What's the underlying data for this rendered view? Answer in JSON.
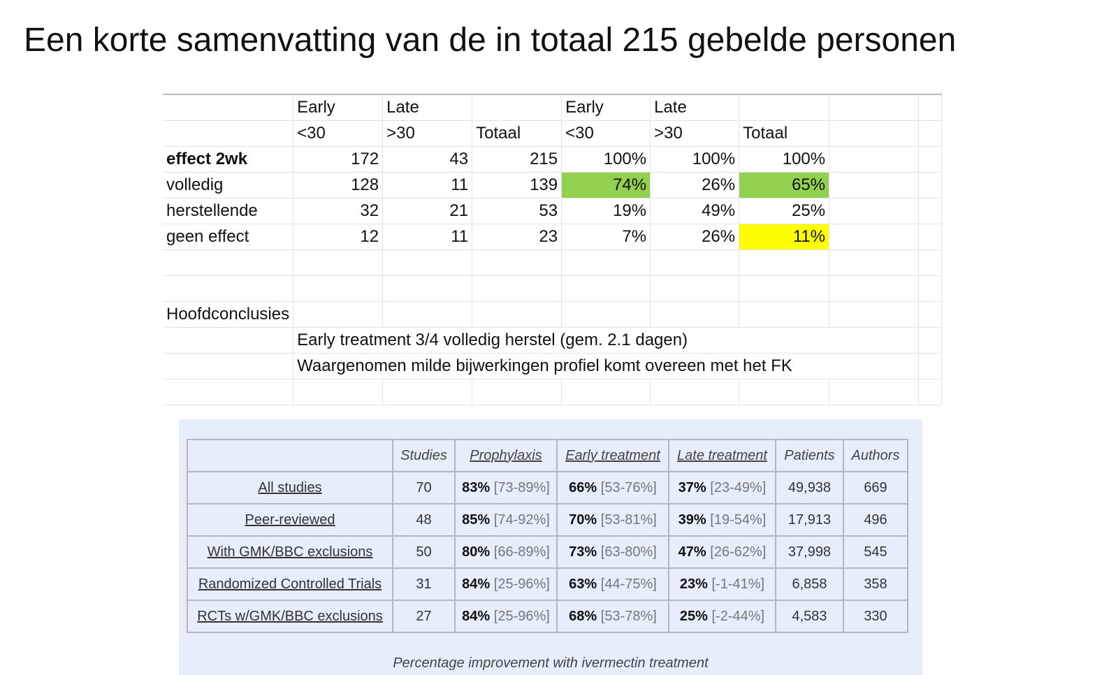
{
  "header": {
    "title": "Een korte samenvatting van de in totaal 215 gebelde personen"
  },
  "sheet": {
    "header_row_1": [
      "Early",
      "Late",
      "Early",
      "Late"
    ],
    "header_row_2": [
      "<30",
      ">30",
      "Totaal",
      "<30",
      ">30",
      "Totaal"
    ],
    "rows": [
      {
        "label": "effect 2wk",
        "values": [
          "172",
          "43",
          "215",
          "100%",
          "100%",
          "100%"
        ]
      },
      {
        "label": "volledig",
        "values": [
          "128",
          "11",
          "139",
          "74%",
          "26%",
          "65%"
        ]
      },
      {
        "label": "herstellende",
        "values": [
          "32",
          "21",
          "53",
          "19%",
          "49%",
          "25%"
        ]
      },
      {
        "label": "geen effect",
        "values": [
          "12",
          "11",
          "23",
          "7%",
          "26%",
          "11%"
        ]
      }
    ],
    "conclusions_title": "Hoofdconclusies",
    "conclusions": [
      "Early treatment 3/4 volledig herstel (gem. 2.1 dagen)",
      "Waargenomen milde bijwerkingen profiel komt overeen met het FK"
    ]
  },
  "evidence": {
    "headers": [
      "Studies",
      "Prophylaxis",
      "Early treatment",
      "Late treatment",
      "Patients",
      "Authors"
    ],
    "rows": [
      [
        "All studies",
        "70",
        [
          "83%",
          "[73-89%]"
        ],
        [
          "66%",
          "[53-76%]"
        ],
        [
          "37%",
          "[23-49%]"
        ],
        "49,938",
        "669"
      ],
      [
        "Peer-reviewed",
        "48",
        [
          "85%",
          "[74-92%]"
        ],
        [
          "70%",
          "[53-81%]"
        ],
        [
          "39%",
          "[19-54%]"
        ],
        "17,913",
        "496"
      ],
      [
        "With GMK/BBC exclusions",
        "50",
        [
          "80%",
          "[66-89%]"
        ],
        [
          "73%",
          "[63-80%]"
        ],
        [
          "47%",
          "[26-62%]"
        ],
        "37,998",
        "545"
      ],
      [
        "Randomized Controlled Trials",
        "31",
        [
          "84%",
          "[25-96%]"
        ],
        [
          "63%",
          "[44-75%]"
        ],
        [
          "23%",
          "[-1-41%]"
        ],
        "6,858",
        "358"
      ],
      [
        "RCTs w/GMK/BBC exclusions",
        "27",
        [
          "84%",
          "[25-96%]"
        ],
        [
          "68%",
          "[53-78%]"
        ],
        [
          "25%",
          "[-2-44%]"
        ],
        "4,583",
        "330"
      ]
    ],
    "caption": "Percentage improvement with ivermectin treatment"
  }
}
